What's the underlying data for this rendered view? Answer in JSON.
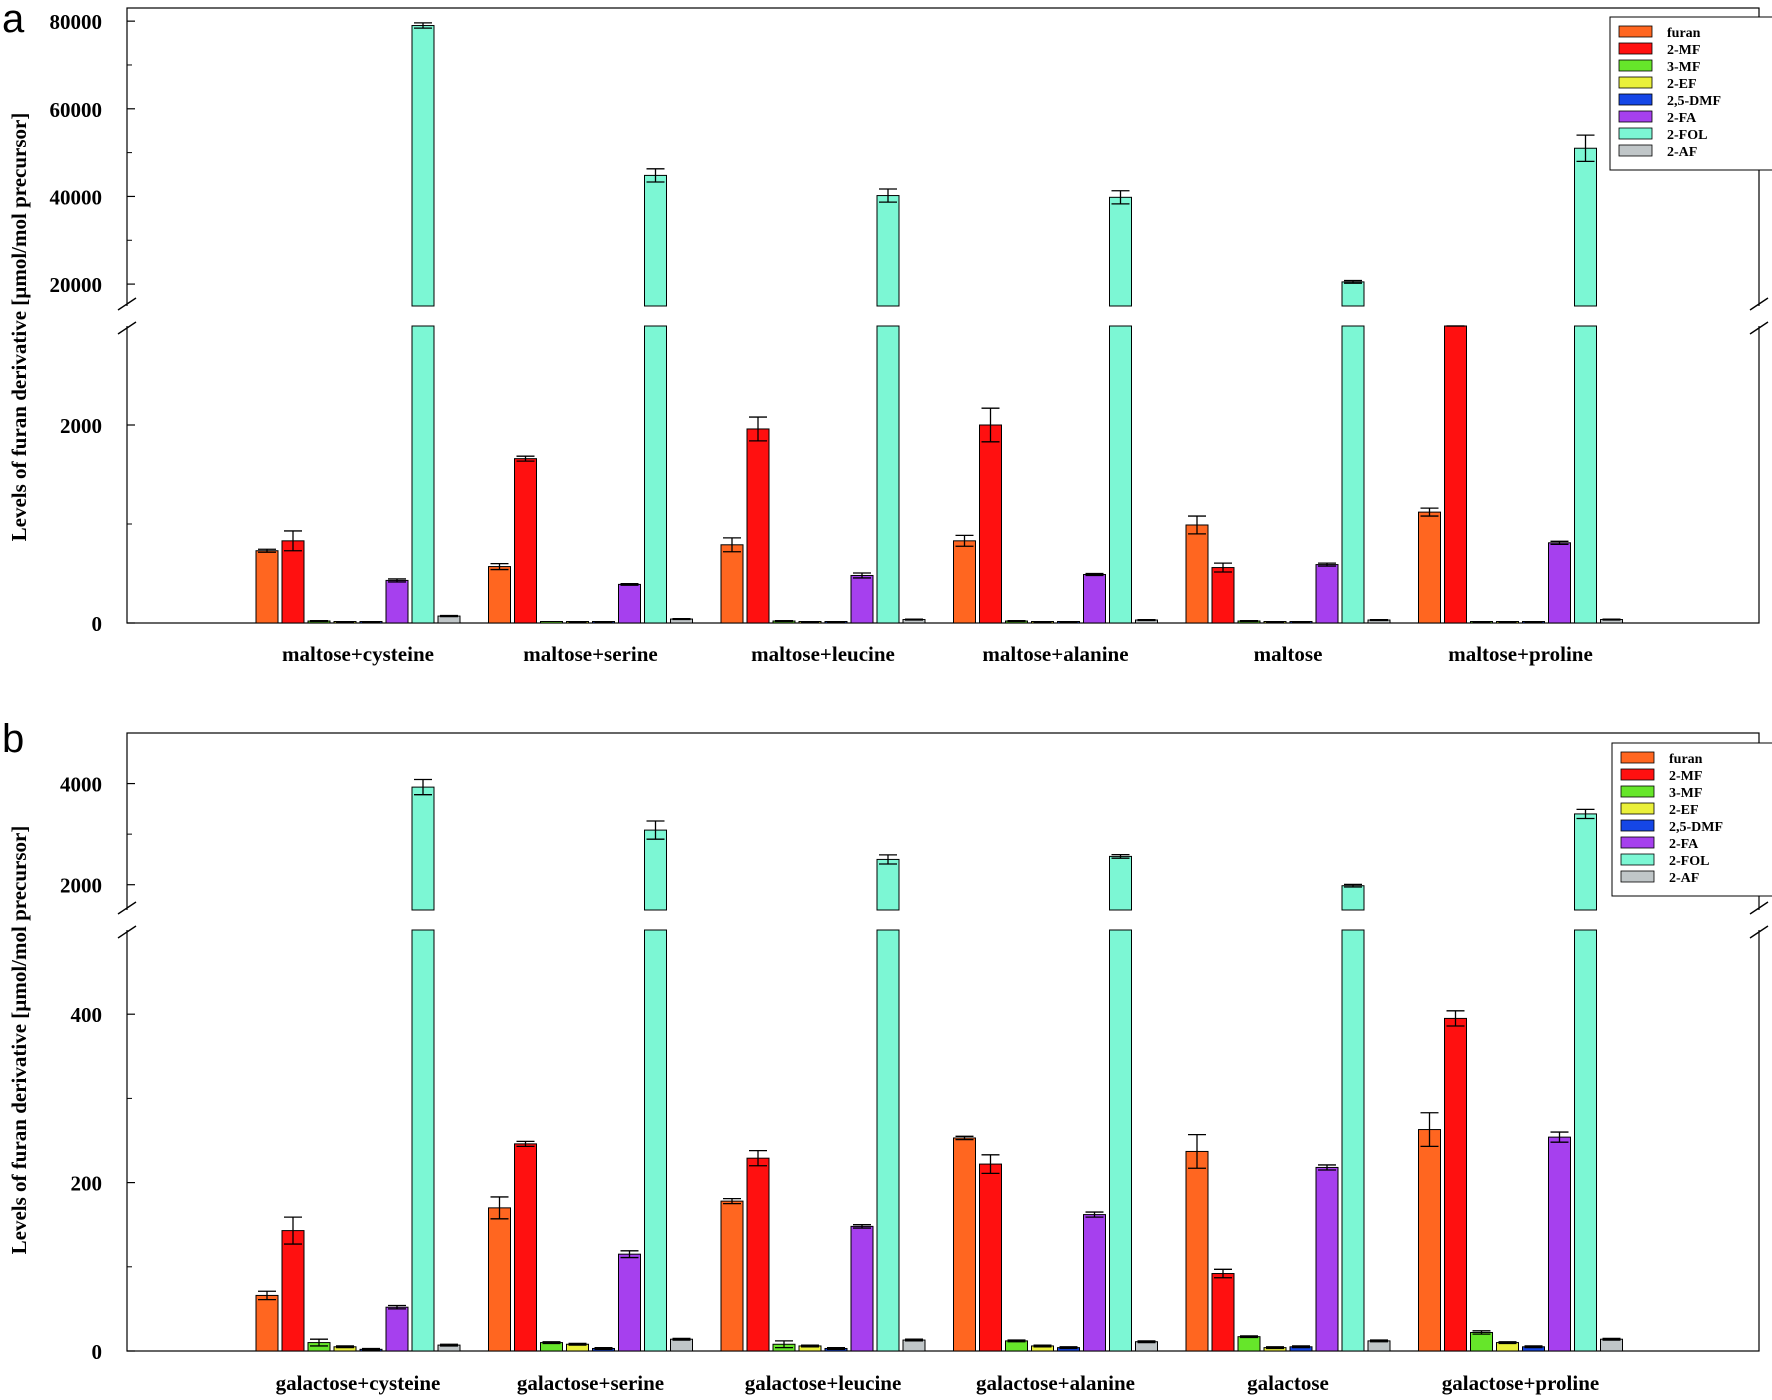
{
  "figure": {
    "panels": [
      "a",
      "b"
    ]
  },
  "chart_data": [
    {
      "panel": "a",
      "type": "bar",
      "ylabel": "Levels of furan derivative [µmol/mol precursor]",
      "xlabel": "",
      "legend_position": "top-right",
      "broken_axis": true,
      "lower_ylim": [
        0,
        3000
      ],
      "upper_ylim": [
        15000,
        83000
      ],
      "lower_ticks": [
        "0",
        "2000"
      ],
      "upper_ticks": [
        "20000",
        "40000",
        "60000",
        "80000"
      ],
      "categories": [
        "maltose+cysteine",
        "maltose+serine",
        "maltose+leucine",
        "maltose+alanine",
        "maltose",
        "maltose+proline"
      ],
      "series": [
        {
          "name": "furan",
          "color": "#ff6620",
          "values": [
            730,
            570,
            790,
            830,
            990,
            1120
          ],
          "errors": [
            15,
            30,
            70,
            55,
            90,
            40
          ]
        },
        {
          "name": "2-MF",
          "color": "#ff1010",
          "values": [
            830,
            1660,
            1960,
            2000,
            560,
            3130
          ],
          "errors": [
            100,
            25,
            120,
            170,
            45,
            55
          ]
        },
        {
          "name": "3-MF",
          "color": "#66e62a",
          "values": [
            20,
            0,
            20,
            20,
            20,
            10
          ],
          "errors": [
            4,
            0,
            4,
            4,
            4,
            2
          ]
        },
        {
          "name": "2-EF",
          "color": "#eaf03a",
          "values": [
            10,
            10,
            10,
            10,
            10,
            10
          ],
          "errors": [
            2,
            2,
            2,
            2,
            2,
            2
          ]
        },
        {
          "name": "2,5-DMF",
          "color": "#1546e6",
          "values": [
            5,
            5,
            5,
            5,
            5,
            5
          ],
          "errors": [
            1,
            1,
            1,
            1,
            1,
            1
          ]
        },
        {
          "name": "2-FA",
          "color": "#a640ee",
          "values": [
            430,
            390,
            480,
            490,
            590,
            810
          ],
          "errors": [
            15,
            8,
            25,
            10,
            15,
            15
          ]
        },
        {
          "name": "2-FOL",
          "color": "#7cf7d4",
          "values": [
            79000,
            44800,
            40200,
            39800,
            20500,
            51000
          ],
          "errors": [
            600,
            1500,
            1500,
            1500,
            300,
            3000
          ]
        },
        {
          "name": "2-AF",
          "color": "#c0c6c8",
          "values": [
            70,
            40,
            35,
            30,
            30,
            35
          ],
          "errors": [
            5,
            4,
            4,
            4,
            4,
            4
          ]
        }
      ]
    },
    {
      "panel": "b",
      "type": "bar",
      "ylabel": "Levels of furan derivative [µmol/mol precursor]",
      "xlabel": "",
      "legend_position": "top-right",
      "broken_axis": true,
      "lower_ylim": [
        0,
        500
      ],
      "upper_ylim": [
        1500,
        5000
      ],
      "lower_ticks": [
        "0",
        "200",
        "400"
      ],
      "upper_ticks": [
        "2000",
        "4000"
      ],
      "categories": [
        "galactose+cysteine",
        "galactose+serine",
        "galactose+leucine",
        "galactose+alanine",
        "galactose",
        "galactose+proline"
      ],
      "series": [
        {
          "name": "furan",
          "color": "#ff6620",
          "values": [
            66,
            170,
            178,
            253,
            237,
            263
          ],
          "errors": [
            5,
            13,
            3,
            2,
            20,
            20
          ]
        },
        {
          "name": "2-MF",
          "color": "#ff1010",
          "values": [
            143,
            246,
            229,
            222,
            92,
            395
          ],
          "errors": [
            16,
            3,
            9,
            11,
            5,
            9
          ]
        },
        {
          "name": "3-MF",
          "color": "#66e62a",
          "values": [
            10,
            10,
            8,
            12,
            17,
            22
          ],
          "errors": [
            4,
            1,
            4,
            1,
            1,
            2
          ]
        },
        {
          "name": "2-EF",
          "color": "#eaf03a",
          "values": [
            5,
            8,
            6,
            6,
            4,
            10
          ],
          "errors": [
            1,
            1,
            1,
            1,
            1,
            1
          ]
        },
        {
          "name": "2,5-DMF",
          "color": "#1546e6",
          "values": [
            2,
            3,
            3,
            4,
            5,
            5
          ],
          "errors": [
            1,
            1,
            1,
            1,
            1,
            1
          ]
        },
        {
          "name": "2-FA",
          "color": "#a640ee",
          "values": [
            52,
            115,
            148,
            162,
            218,
            254
          ],
          "errors": [
            2,
            4,
            2,
            3,
            3,
            6
          ]
        },
        {
          "name": "2-FOL",
          "color": "#7cf7d4",
          "values": [
            3930,
            3080,
            2500,
            2560,
            1980,
            3400
          ],
          "errors": [
            150,
            180,
            90,
            35,
            25,
            90
          ]
        },
        {
          "name": "2-AF",
          "color": "#c0c6c8",
          "values": [
            7,
            14,
            13,
            11,
            12,
            14
          ],
          "errors": [
            1,
            1,
            1,
            1,
            1,
            1
          ]
        }
      ]
    }
  ]
}
